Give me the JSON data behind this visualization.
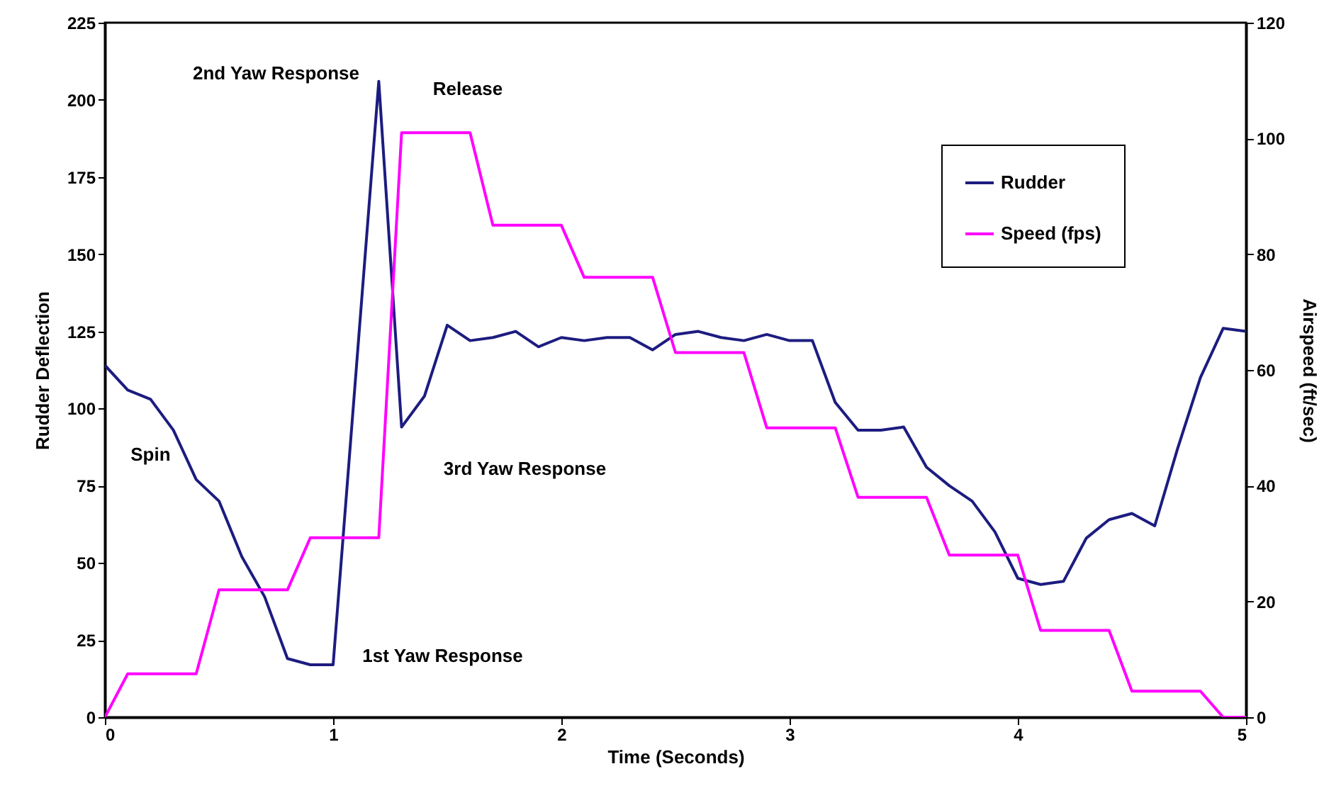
{
  "chart_data": {
    "type": "line",
    "xlabel": "Time (Seconds)",
    "ylabel": "Rudder Deflection",
    "y2label": "Airspeed (ft/sec)",
    "xlim": [
      0,
      5
    ],
    "xticks": [
      0,
      1,
      2,
      3,
      4,
      5
    ],
    "ylim": [
      0,
      225
    ],
    "yticks": [
      0,
      25,
      50,
      75,
      100,
      125,
      150,
      175,
      200,
      225
    ],
    "y2lim": [
      0,
      120
    ],
    "y2ticks": [
      0,
      20,
      40,
      60,
      80,
      100,
      120
    ],
    "grid": false,
    "legend": "top right",
    "series": [
      {
        "name": "Rudder",
        "color": "#1c1c80",
        "x": [
          0,
          0.1,
          0.2,
          0.3,
          0.4,
          0.5,
          0.6,
          0.7,
          0.8,
          0.9,
          1.0,
          1.2,
          1.3,
          1.4,
          1.5,
          1.6,
          1.7,
          1.8,
          1.9,
          2.0,
          2.1,
          2.2,
          2.3,
          2.4,
          2.5,
          2.6,
          2.7,
          2.8,
          2.9,
          3.0,
          3.1,
          3.2,
          3.3,
          3.4,
          3.5,
          3.6,
          3.7,
          3.8,
          3.9,
          4.0,
          4.1,
          4.2,
          4.3,
          4.4,
          4.5,
          4.6,
          4.7,
          4.8,
          4.9,
          5.0
        ],
        "values": [
          114,
          106,
          103,
          93,
          77,
          70,
          52,
          39,
          19,
          17,
          17,
          206,
          94,
          104,
          127,
          122,
          123,
          125,
          120,
          123,
          122,
          123,
          123,
          119,
          124,
          125,
          123,
          122,
          124,
          122,
          122,
          102,
          93,
          93,
          94,
          81,
          75,
          70,
          60,
          45,
          43,
          44,
          58,
          64,
          66,
          62,
          87,
          110,
          126,
          125
        ]
      },
      {
        "name": "Speed (fps)",
        "color": "#ff00ff",
        "axis": "y2",
        "x": [
          0,
          0.1,
          0.4,
          0.5,
          0.8,
          0.9,
          1.2,
          1.3,
          1.6,
          1.7,
          2.0,
          2.1,
          2.4,
          2.5,
          2.8,
          2.9,
          3.2,
          3.3,
          3.6,
          3.7,
          4.0,
          4.1,
          4.4,
          4.5,
          4.8,
          4.9,
          5.0
        ],
        "values": [
          0,
          7.5,
          7.5,
          22,
          22,
          31,
          31,
          101,
          101,
          85,
          85,
          76,
          76,
          63,
          63,
          50,
          50,
          38,
          38,
          28,
          28,
          15,
          15,
          4.5,
          4.5,
          0,
          0
        ]
      }
    ],
    "annotations": [
      "2nd Yaw Response",
      "Release",
      "Spin",
      "3rd Yaw Response",
      "1st Yaw Response"
    ]
  }
}
